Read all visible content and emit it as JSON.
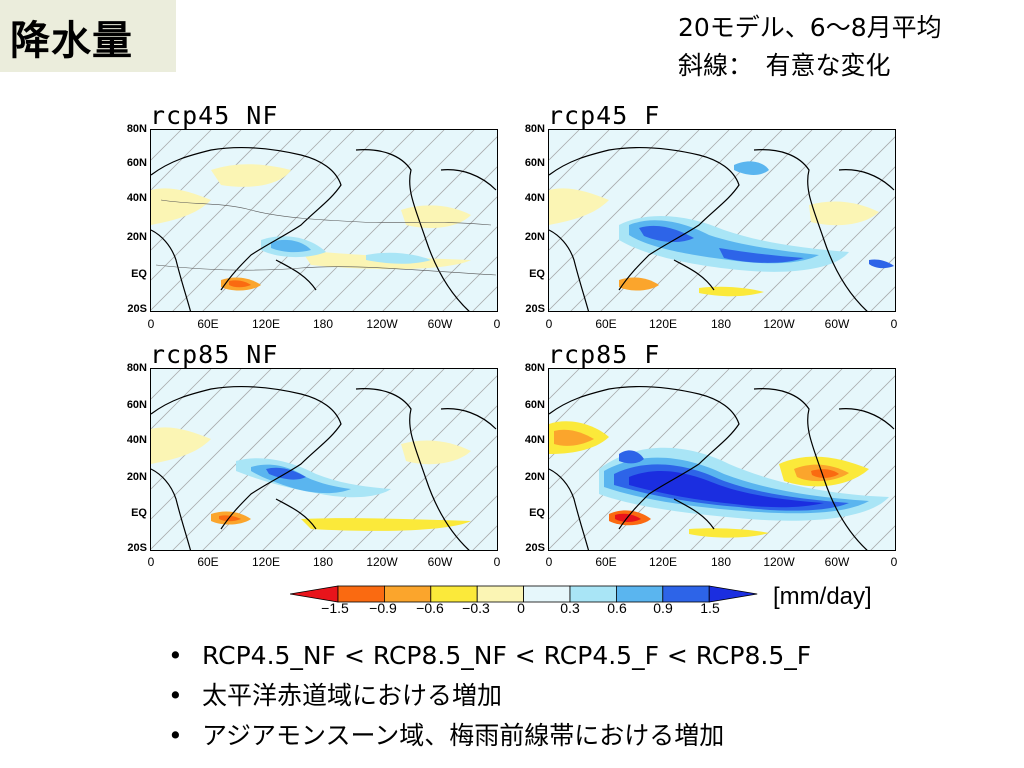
{
  "title": "降水量",
  "notes": {
    "line1": "20モデル、6～8月平均",
    "line2": "斜線：　有意な変化"
  },
  "panels": [
    {
      "id": "p1",
      "title": "rcp45_NF"
    },
    {
      "id": "p2",
      "title": "rcp45_F"
    },
    {
      "id": "p3",
      "title": "rcp85_NF"
    },
    {
      "id": "p4",
      "title": "rcp85_F"
    }
  ],
  "axes": {
    "y_ticks": [
      "80N",
      "60N",
      "40N",
      "20N",
      "EQ",
      "20S"
    ],
    "x_ticks": [
      "0",
      "60E",
      "120E",
      "180",
      "120W",
      "60W",
      "0"
    ]
  },
  "colorbar": {
    "labels": [
      "−1.5",
      "−0.9",
      "−0.6",
      "−0.3",
      "0",
      "0.3",
      "0.6",
      "0.9",
      "1.5"
    ],
    "colors": [
      "#e8141b",
      "#fa6a11",
      "#fba52c",
      "#fbe93a",
      "#fbf5b4",
      "#e6f7fb",
      "#a9e5f6",
      "#5ab5ef",
      "#2d64e8",
      "#1b2ee0"
    ],
    "unit": "[mm/day]"
  },
  "bullets": [
    "RCP4.5_NF < RCP8.5_NF < RCP4.5_F < RCP8.5_F",
    "太平洋赤道域における増加",
    "アジアモンスーン域、梅雨前線帯における増加"
  ]
}
